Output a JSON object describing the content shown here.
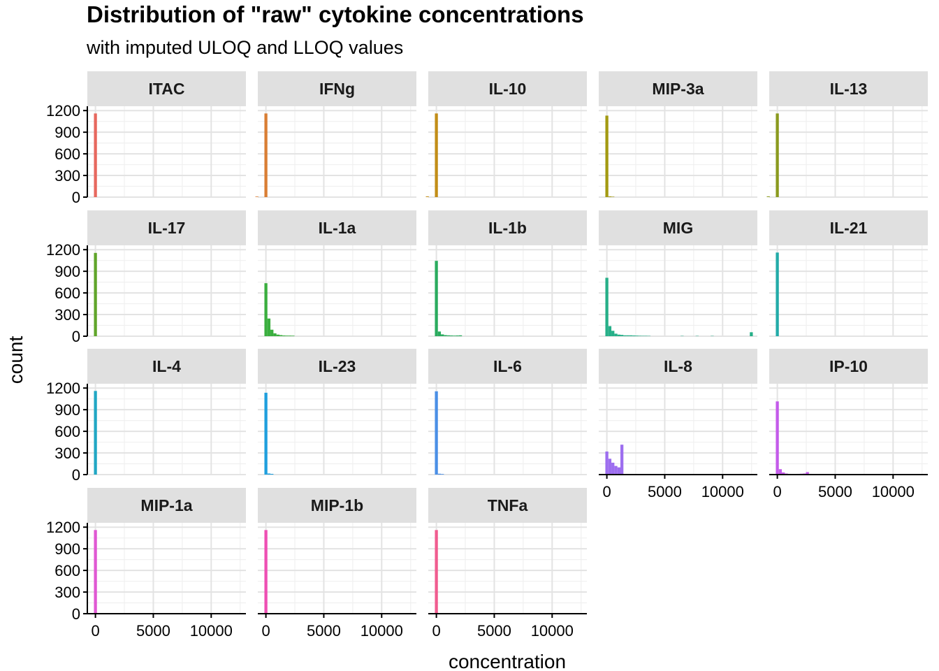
{
  "chart_data": {
    "type": "bar",
    "subtype": "faceted-histogram",
    "title": "Distribution of \"raw\" cytokine concentrations",
    "subtitle": "with imputed ULOQ and LLOQ values",
    "xlabel": "concentration",
    "ylabel": "count",
    "xlim": [
      -700,
      13000
    ],
    "ylim": [
      0,
      1260
    ],
    "x_ticks": [
      0,
      5000,
      10000
    ],
    "x_tick_labels": [
      "0",
      "5000",
      "10000"
    ],
    "y_ticks": [
      0,
      300,
      600,
      900,
      1200
    ],
    "y_tick_labels": [
      "0",
      "300",
      "600",
      "900",
      "1200"
    ],
    "grid": true,
    "legend": "none",
    "bin_width": 260,
    "facets": [
      {
        "name": "ITAC",
        "color": "#E7685E",
        "bins": [
          [
            0,
            1160
          ]
        ]
      },
      {
        "name": "IFNg",
        "color": "#D97E34",
        "bins": [
          [
            -780,
            8
          ],
          [
            0,
            1160
          ]
        ]
      },
      {
        "name": "IL-10",
        "color": "#C28D17",
        "bins": [
          [
            -780,
            10
          ],
          [
            0,
            1160
          ]
        ]
      },
      {
        "name": "MIP-3a",
        "color": "#A39A12",
        "bins": [
          [
            0,
            1130
          ],
          [
            260,
            10
          ],
          [
            520,
            6
          ]
        ]
      },
      {
        "name": "IL-13",
        "color": "#8A9A1E",
        "bins": [
          [
            -780,
            10
          ],
          [
            0,
            1160
          ]
        ]
      },
      {
        "name": "IL-17",
        "color": "#60A52A",
        "bins": [
          [
            0,
            1155
          ]
        ]
      },
      {
        "name": "IL-1a",
        "color": "#3AAE3E",
        "bins": [
          [
            0,
            735
          ],
          [
            260,
            245
          ],
          [
            520,
            90
          ],
          [
            780,
            40
          ],
          [
            1040,
            22
          ],
          [
            1300,
            15
          ],
          [
            1560,
            10
          ],
          [
            1820,
            8
          ],
          [
            2080,
            8
          ],
          [
            2340,
            7
          ]
        ]
      },
      {
        "name": "IL-1b",
        "color": "#2AAB5E",
        "bins": [
          [
            0,
            1045
          ],
          [
            260,
            65
          ],
          [
            520,
            25
          ],
          [
            780,
            15
          ],
          [
            1040,
            12
          ],
          [
            1300,
            10
          ],
          [
            1560,
            8
          ],
          [
            1820,
            10
          ],
          [
            2080,
            12
          ]
        ]
      },
      {
        "name": "MIG",
        "color": "#26AF88",
        "bins": [
          [
            0,
            810
          ],
          [
            260,
            140
          ],
          [
            520,
            75
          ],
          [
            780,
            35
          ],
          [
            1040,
            22
          ],
          [
            1300,
            18
          ],
          [
            1560,
            12
          ],
          [
            1820,
            12
          ],
          [
            2080,
            12
          ],
          [
            2340,
            10
          ],
          [
            2600,
            8
          ],
          [
            2860,
            6
          ],
          [
            3120,
            5
          ],
          [
            3380,
            5
          ],
          [
            3640,
            4
          ],
          [
            6500,
            4
          ],
          [
            7800,
            4
          ],
          [
            9100,
            4
          ],
          [
            12480,
            55
          ]
        ]
      },
      {
        "name": "IL-21",
        "color": "#22ABA8",
        "bins": [
          [
            0,
            1160
          ]
        ]
      },
      {
        "name": "IL-4",
        "color": "#21A7C4",
        "bins": [
          [
            0,
            1160
          ]
        ]
      },
      {
        "name": "IL-23",
        "color": "#1F9FDD",
        "bins": [
          [
            0,
            1135
          ],
          [
            260,
            15
          ],
          [
            520,
            10
          ]
        ]
      },
      {
        "name": "IL-6",
        "color": "#4A8FE6",
        "bins": [
          [
            0,
            1155
          ],
          [
            260,
            12
          ],
          [
            520,
            8
          ]
        ]
      },
      {
        "name": "IL-8",
        "color": "#9D6EEF",
        "bins": [
          [
            0,
            320
          ],
          [
            260,
            220
          ],
          [
            520,
            165
          ],
          [
            780,
            120
          ],
          [
            1040,
            100
          ],
          [
            1300,
            415
          ]
        ]
      },
      {
        "name": "IP-10",
        "color": "#C45BEA",
        "bins": [
          [
            0,
            1015
          ],
          [
            260,
            75
          ],
          [
            520,
            30
          ],
          [
            780,
            15
          ],
          [
            1040,
            10
          ],
          [
            1300,
            8
          ],
          [
            1560,
            8
          ],
          [
            1820,
            10
          ],
          [
            2080,
            12
          ],
          [
            2340,
            15
          ],
          [
            2600,
            35
          ],
          [
            2860,
            10
          ]
        ]
      },
      {
        "name": "MIP-1a",
        "color": "#E058D3",
        "bins": [
          [
            0,
            1160
          ],
          [
            260,
            8
          ]
        ]
      },
      {
        "name": "MIP-1b",
        "color": "#EE4FB3",
        "bins": [
          [
            0,
            1160
          ],
          [
            260,
            8
          ]
        ]
      },
      {
        "name": "TNFa",
        "color": "#F05C8F",
        "bins": [
          [
            0,
            1160
          ]
        ]
      }
    ]
  }
}
